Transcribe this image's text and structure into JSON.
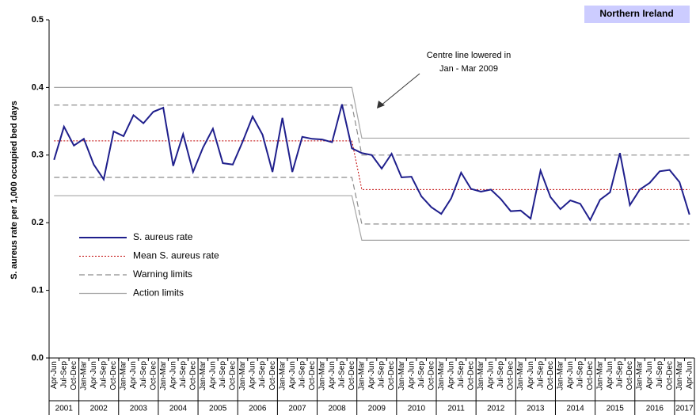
{
  "chart_data": {
    "type": "line",
    "badge": "Northern Ireland",
    "y_label": "S. aureus rate per 1,000 occupied bed days",
    "annotation": [
      "Centre line lowered in",
      "Jan  - Mar 2009"
    ],
    "ylim": [
      0,
      0.5
    ],
    "yticks": [
      {
        "value": 0,
        "label": "0.0"
      },
      0.1,
      0.2,
      0.3,
      0.4,
      0.5
    ],
    "x_groups": [
      {
        "label": "2001",
        "categories": [
          "Apr-Jun",
          "Jul-Sep",
          "Oct-Dec"
        ]
      },
      {
        "label": "2002",
        "categories": [
          "Jan-Mar",
          "Apr-Jun",
          "Jul-Sep",
          "Oct-Dec"
        ]
      },
      {
        "label": "2003",
        "categories": [
          "Jan-Mar",
          "Apr-Jun",
          "Jul-Sep",
          "Oct-Dec"
        ]
      },
      {
        "label": "2004",
        "categories": [
          "Jan-Mar",
          "Apr-Jun",
          "Jul-Sep",
          "Oct-Dec"
        ]
      },
      {
        "label": "2005",
        "categories": [
          "Jan-Mar",
          "Apr-Jun",
          "Jul-Sep",
          "Oct-Dec"
        ]
      },
      {
        "label": "2006",
        "categories": [
          "Jan-Mar",
          "Apr-Jun",
          "Jul-Sep",
          "Oct-Dec"
        ]
      },
      {
        "label": "2007",
        "categories": [
          "Jan-Mar",
          "Apr-Jun",
          "Jul-Sep",
          "Oct-Dec"
        ]
      },
      {
        "label": "2008",
        "categories": [
          "Jan-Mar",
          "Apr-Jun",
          "Jul-Sep",
          "Oct-Dec"
        ]
      },
      {
        "label": "2009",
        "categories": [
          "Jan-Mar",
          "Apr-Jun",
          "Jul-Sep",
          "Oct-Dec"
        ]
      },
      {
        "label": "2010",
        "categories": [
          "Jan-Mar",
          "Apr-Jun",
          "Jul-Sep",
          "Oct-Dec"
        ]
      },
      {
        "label": "2011",
        "categories": [
          "Jan-Mar",
          "Apr-Jun",
          "Jul-Sep",
          "Oct-Dec"
        ]
      },
      {
        "label": "2012",
        "categories": [
          "Jan-Mar",
          "Apr-Jun",
          "Jul-Sep",
          "Oct-Dec"
        ]
      },
      {
        "label": "2013",
        "categories": [
          "Jan-Mar",
          "Apr-Jun",
          "Jul-Sep",
          "Oct-Dec"
        ]
      },
      {
        "label": "2014",
        "categories": [
          "Jan-Mar",
          "Apr-Jun",
          "Jul-Sep",
          "Oct-Dec"
        ]
      },
      {
        "label": "2015",
        "categories": [
          "Jan-Mar",
          "Apr-Jun",
          "Jul-Sep",
          "Oct-Dec"
        ]
      },
      {
        "label": "2016",
        "categories": [
          "Jan-Mar",
          "Apr-Jun",
          "Jul-Sep",
          "Oct-Dec"
        ]
      },
      {
        "label": "2017",
        "categories": [
          "Jan-Mar",
          "Apr-Jun"
        ]
      }
    ],
    "series": [
      {
        "name": "S. aureus rate",
        "color": "#1f1f8c",
        "width": 2,
        "dash": "none",
        "lines": [
          [
            0.293,
            0.342,
            0.314,
            0.324,
            0.286,
            0.264,
            0.335,
            0.328,
            0.359,
            0.347,
            0.364,
            0.37,
            0.284,
            0.331,
            0.275,
            0.311,
            0.339,
            0.288,
            0.286,
            0.32,
            0.357,
            0.33,
            0.275,
            0.355,
            0.275,
            0.327,
            0.324,
            0.323,
            0.319,
            0.375,
            0.31,
            0.303,
            0.3,
            0.28,
            0.302,
            0.267,
            0.268,
            0.239,
            0.223,
            0.213,
            0.236,
            0.274,
            0.25,
            0.246,
            0.249,
            0.235,
            0.217,
            0.218,
            0.206,
            0.277,
            0.238,
            0.22,
            0.233,
            0.228,
            0.204,
            0.234,
            0.245,
            0.303,
            0.226,
            0.249,
            0.259,
            0.276,
            0.278,
            0.26,
            0.212
          ]
        ]
      },
      {
        "name": "Mean S. aureus rate",
        "color": "#c00000",
        "width": 1,
        "dash": "2 2",
        "lines": [
          [
            0.321,
            0.321,
            0.321,
            0.321,
            0.321,
            0.321,
            0.321,
            0.321,
            0.321,
            0.321,
            0.321,
            0.321,
            0.321,
            0.321,
            0.321,
            0.321,
            0.321,
            0.321,
            0.321,
            0.321,
            0.321,
            0.321,
            0.321,
            0.321,
            0.321,
            0.321,
            0.321,
            0.321,
            0.321,
            0.321,
            0.321,
            0.249,
            0.249,
            0.249,
            0.249,
            0.249,
            0.249,
            0.249,
            0.249,
            0.249,
            0.249,
            0.249,
            0.249,
            0.249,
            0.249,
            0.249,
            0.249,
            0.249,
            0.249,
            0.249,
            0.249,
            0.249,
            0.249,
            0.249,
            0.249,
            0.249,
            0.249,
            0.249,
            0.249,
            0.249,
            0.249,
            0.249,
            0.249,
            0.249,
            0.249
          ]
        ]
      },
      {
        "name": "Warning limits",
        "color": "#8c8c8c",
        "width": 1.2,
        "dash": "7 4",
        "lines": [
          [
            0.374,
            0.374,
            0.374,
            0.374,
            0.374,
            0.374,
            0.374,
            0.374,
            0.374,
            0.374,
            0.374,
            0.374,
            0.374,
            0.374,
            0.374,
            0.374,
            0.374,
            0.374,
            0.374,
            0.374,
            0.374,
            0.374,
            0.374,
            0.374,
            0.374,
            0.374,
            0.374,
            0.374,
            0.374,
            0.374,
            0.374,
            0.3,
            0.3,
            0.3,
            0.3,
            0.3,
            0.3,
            0.3,
            0.3,
            0.3,
            0.3,
            0.3,
            0.3,
            0.3,
            0.3,
            0.3,
            0.3,
            0.3,
            0.3,
            0.3,
            0.3,
            0.3,
            0.3,
            0.3,
            0.3,
            0.3,
            0.3,
            0.3,
            0.3,
            0.3,
            0.3,
            0.3,
            0.3,
            0.3,
            0.3
          ],
          [
            0.267,
            0.267,
            0.267,
            0.267,
            0.267,
            0.267,
            0.267,
            0.267,
            0.267,
            0.267,
            0.267,
            0.267,
            0.267,
            0.267,
            0.267,
            0.267,
            0.267,
            0.267,
            0.267,
            0.267,
            0.267,
            0.267,
            0.267,
            0.267,
            0.267,
            0.267,
            0.267,
            0.267,
            0.267,
            0.267,
            0.267,
            0.198,
            0.198,
            0.198,
            0.198,
            0.198,
            0.198,
            0.198,
            0.198,
            0.198,
            0.198,
            0.198,
            0.198,
            0.198,
            0.198,
            0.198,
            0.198,
            0.198,
            0.198,
            0.198,
            0.198,
            0.198,
            0.198,
            0.198,
            0.198,
            0.198,
            0.198,
            0.198,
            0.198,
            0.198,
            0.198,
            0.198,
            0.198,
            0.198,
            0.198
          ]
        ]
      },
      {
        "name": "Action limits",
        "color": "#a6a6a6",
        "width": 1.2,
        "dash": "none",
        "lines": [
          [
            0.4,
            0.4,
            0.4,
            0.4,
            0.4,
            0.4,
            0.4,
            0.4,
            0.4,
            0.4,
            0.4,
            0.4,
            0.4,
            0.4,
            0.4,
            0.4,
            0.4,
            0.4,
            0.4,
            0.4,
            0.4,
            0.4,
            0.4,
            0.4,
            0.4,
            0.4,
            0.4,
            0.4,
            0.4,
            0.4,
            0.4,
            0.325,
            0.325,
            0.325,
            0.325,
            0.325,
            0.325,
            0.325,
            0.325,
            0.325,
            0.325,
            0.325,
            0.325,
            0.325,
            0.325,
            0.325,
            0.325,
            0.325,
            0.325,
            0.325,
            0.325,
            0.325,
            0.325,
            0.325,
            0.325,
            0.325,
            0.325,
            0.325,
            0.325,
            0.325,
            0.325,
            0.325,
            0.325,
            0.325,
            0.325
          ],
          [
            0.24,
            0.24,
            0.24,
            0.24,
            0.24,
            0.24,
            0.24,
            0.24,
            0.24,
            0.24,
            0.24,
            0.24,
            0.24,
            0.24,
            0.24,
            0.24,
            0.24,
            0.24,
            0.24,
            0.24,
            0.24,
            0.24,
            0.24,
            0.24,
            0.24,
            0.24,
            0.24,
            0.24,
            0.24,
            0.24,
            0.24,
            0.174,
            0.174,
            0.174,
            0.174,
            0.174,
            0.174,
            0.174,
            0.174,
            0.174,
            0.174,
            0.174,
            0.174,
            0.174,
            0.174,
            0.174,
            0.174,
            0.174,
            0.174,
            0.174,
            0.174,
            0.174,
            0.174,
            0.174,
            0.174,
            0.174,
            0.174,
            0.174,
            0.174,
            0.174,
            0.174,
            0.174,
            0.174,
            0.174,
            0.174
          ]
        ]
      }
    ]
  }
}
